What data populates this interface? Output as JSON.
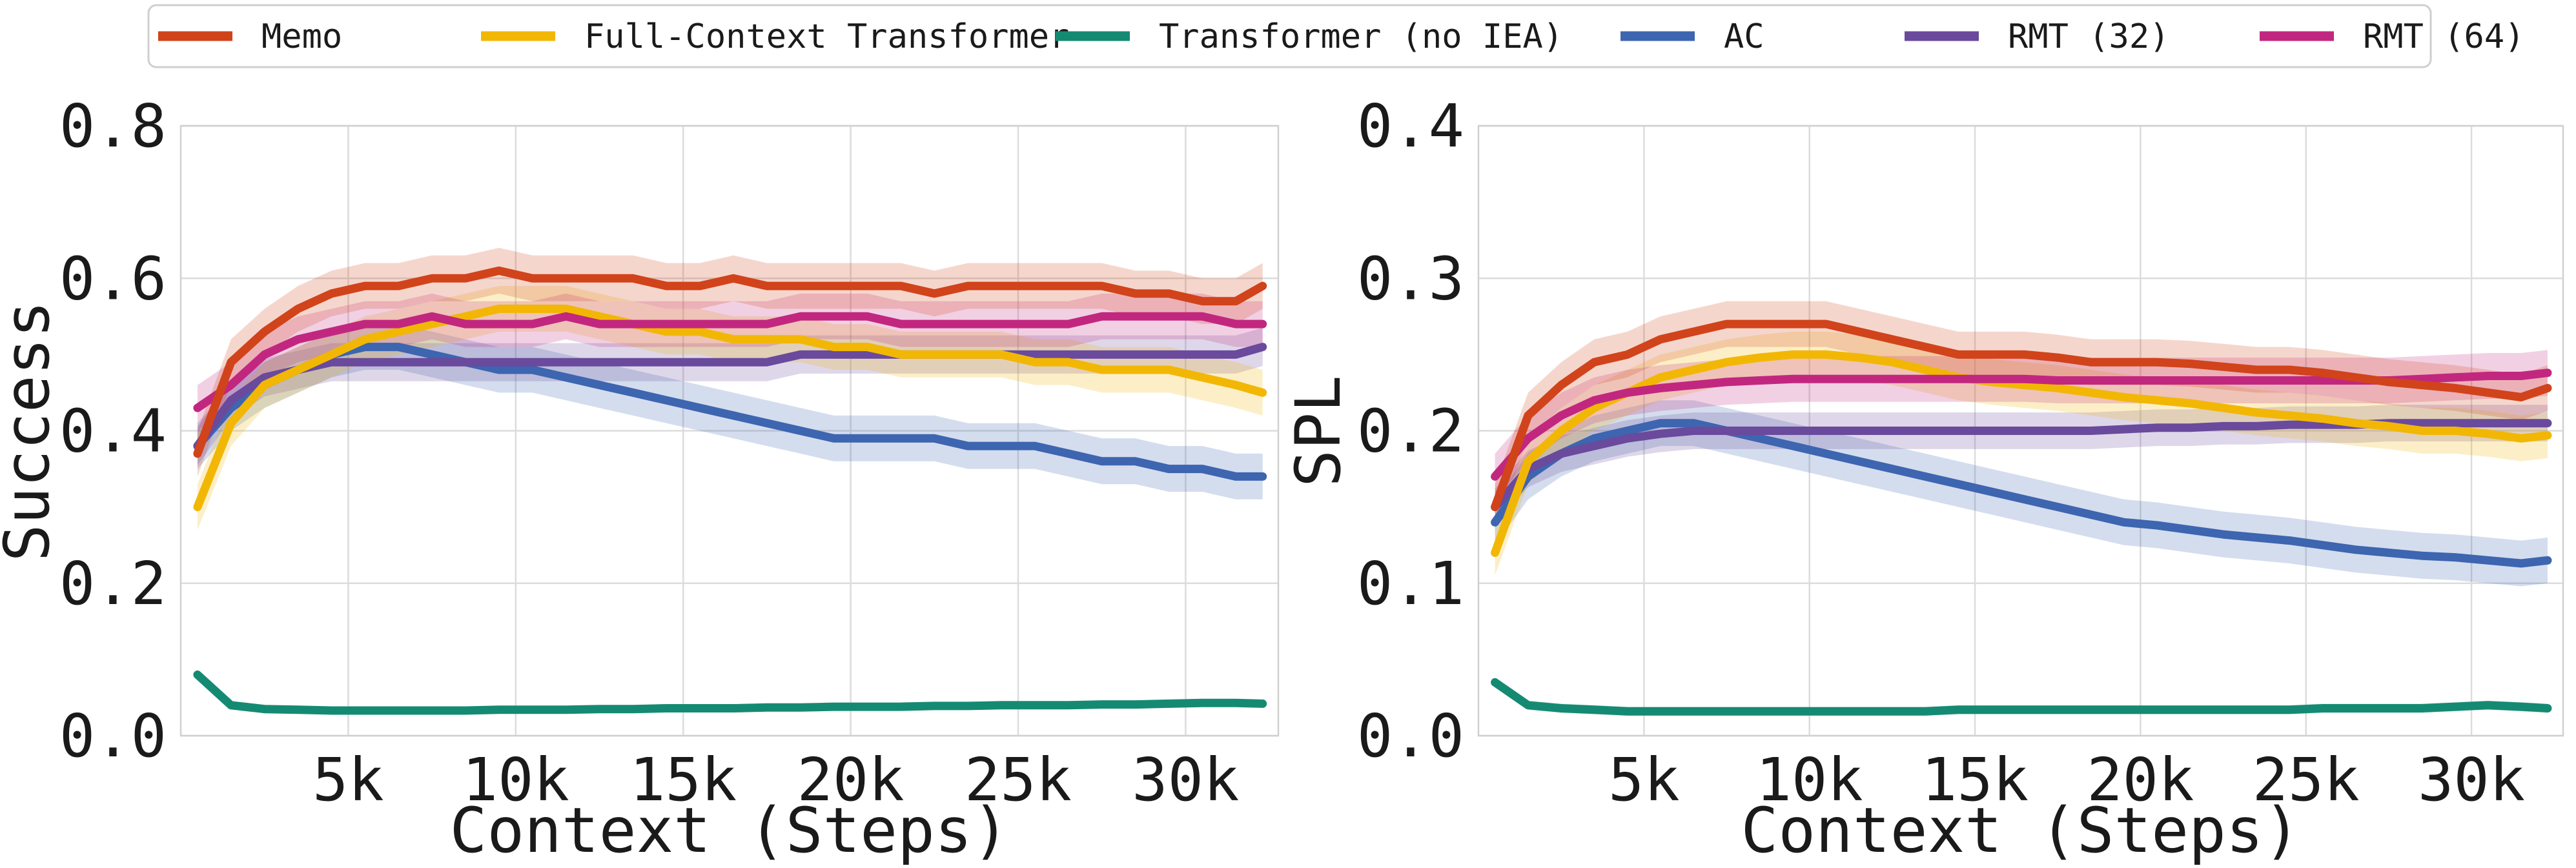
{
  "legend": [
    {
      "label": "Memo",
      "color": "#d1431b"
    },
    {
      "label": "Full-Context Transformer",
      "color": "#f2b705"
    },
    {
      "label": "Transformer (no IEA)",
      "color": "#158a72"
    },
    {
      "label": "AC",
      "color": "#3d65b0"
    },
    {
      "label": "RMT (32)",
      "color": "#6a4a9c"
    },
    {
      "label": "RMT (64)",
      "color": "#c2277f"
    }
  ],
  "chart_data": [
    {
      "type": "line",
      "title": "",
      "xlabel": "Context (Steps)",
      "ylabel": "Success",
      "xlim": [
        0,
        32768
      ],
      "ylim": [
        0,
        0.8
      ],
      "xticks": [
        5000,
        10000,
        15000,
        20000,
        25000,
        30000
      ],
      "xtick_labels": [
        "5k",
        "10k",
        "15k",
        "20k",
        "25k",
        "30k"
      ],
      "yticks": [
        0,
        0.2,
        0.4,
        0.6,
        0.8
      ],
      "ytick_labels": [
        "0.0",
        "0.2",
        "0.4",
        "0.6",
        "0.8"
      ],
      "grid": true,
      "x": [
        500,
        1500,
        2500,
        3500,
        4500,
        5500,
        6500,
        7500,
        8500,
        9500,
        10500,
        11500,
        12500,
        13500,
        14500,
        15500,
        16500,
        17500,
        18500,
        19500,
        20500,
        21500,
        22500,
        23500,
        24500,
        25500,
        26500,
        27500,
        28500,
        29500,
        30500,
        31500,
        32300
      ],
      "series": [
        {
          "name": "Memo",
          "values": [
            0.37,
            0.49,
            0.53,
            0.56,
            0.58,
            0.59,
            0.59,
            0.6,
            0.6,
            0.61,
            0.6,
            0.6,
            0.6,
            0.6,
            0.59,
            0.59,
            0.6,
            0.59,
            0.59,
            0.59,
            0.59,
            0.59,
            0.58,
            0.59,
            0.59,
            0.59,
            0.59,
            0.59,
            0.58,
            0.58,
            0.57,
            0.57,
            0.59
          ],
          "band": [
            0.03,
            0.03,
            0.03,
            0.03,
            0.03,
            0.03,
            0.03,
            0.03,
            0.03,
            0.03,
            0.03,
            0.03,
            0.03,
            0.03,
            0.03,
            0.03,
            0.03,
            0.03,
            0.03,
            0.03,
            0.03,
            0.03,
            0.03,
            0.03,
            0.03,
            0.03,
            0.03,
            0.03,
            0.03,
            0.03,
            0.03,
            0.03,
            0.03
          ]
        },
        {
          "name": "Full-Context Transformer",
          "values": [
            0.3,
            0.41,
            0.46,
            0.48,
            0.5,
            0.52,
            0.53,
            0.54,
            0.55,
            0.56,
            0.56,
            0.56,
            0.55,
            0.54,
            0.53,
            0.53,
            0.52,
            0.52,
            0.52,
            0.51,
            0.51,
            0.5,
            0.5,
            0.5,
            0.5,
            0.49,
            0.49,
            0.48,
            0.48,
            0.48,
            0.47,
            0.46,
            0.45
          ],
          "band": [
            0.03,
            0.03,
            0.03,
            0.03,
            0.03,
            0.03,
            0.03,
            0.03,
            0.03,
            0.03,
            0.03,
            0.03,
            0.03,
            0.03,
            0.03,
            0.03,
            0.03,
            0.03,
            0.03,
            0.03,
            0.03,
            0.03,
            0.03,
            0.03,
            0.03,
            0.03,
            0.03,
            0.03,
            0.03,
            0.03,
            0.03,
            0.03,
            0.03
          ]
        },
        {
          "name": "Transformer (no IEA)",
          "values": [
            0.08,
            0.04,
            0.035,
            0.034,
            0.033,
            0.033,
            0.033,
            0.033,
            0.033,
            0.034,
            0.034,
            0.034,
            0.035,
            0.035,
            0.036,
            0.036,
            0.036,
            0.037,
            0.037,
            0.038,
            0.038,
            0.038,
            0.039,
            0.039,
            0.04,
            0.04,
            0.04,
            0.041,
            0.041,
            0.042,
            0.043,
            0.043,
            0.042
          ],
          "band": [
            0.005,
            0.005,
            0.005,
            0.005,
            0.005,
            0.005,
            0.005,
            0.005,
            0.005,
            0.005,
            0.005,
            0.005,
            0.005,
            0.005,
            0.005,
            0.005,
            0.005,
            0.005,
            0.005,
            0.005,
            0.005,
            0.005,
            0.005,
            0.005,
            0.005,
            0.005,
            0.005,
            0.005,
            0.005,
            0.005,
            0.005,
            0.005,
            0.005
          ]
        },
        {
          "name": "AC",
          "values": [
            0.38,
            0.43,
            0.46,
            0.48,
            0.5,
            0.51,
            0.51,
            0.5,
            0.49,
            0.48,
            0.48,
            0.47,
            0.46,
            0.45,
            0.44,
            0.43,
            0.42,
            0.41,
            0.4,
            0.39,
            0.39,
            0.39,
            0.39,
            0.38,
            0.38,
            0.38,
            0.37,
            0.36,
            0.36,
            0.35,
            0.35,
            0.34,
            0.34
          ],
          "band": [
            0.03,
            0.03,
            0.03,
            0.03,
            0.03,
            0.03,
            0.03,
            0.03,
            0.03,
            0.03,
            0.03,
            0.03,
            0.03,
            0.03,
            0.03,
            0.03,
            0.03,
            0.03,
            0.03,
            0.03,
            0.03,
            0.03,
            0.03,
            0.03,
            0.03,
            0.03,
            0.03,
            0.03,
            0.03,
            0.03,
            0.03,
            0.03,
            0.03
          ]
        },
        {
          "name": "RMT (32)",
          "values": [
            0.38,
            0.44,
            0.47,
            0.48,
            0.49,
            0.49,
            0.49,
            0.49,
            0.49,
            0.49,
            0.49,
            0.49,
            0.49,
            0.49,
            0.49,
            0.49,
            0.49,
            0.49,
            0.5,
            0.5,
            0.5,
            0.5,
            0.5,
            0.5,
            0.5,
            0.5,
            0.5,
            0.5,
            0.5,
            0.5,
            0.5,
            0.5,
            0.51
          ],
          "band": [
            0.025,
            0.025,
            0.025,
            0.025,
            0.025,
            0.025,
            0.025,
            0.025,
            0.025,
            0.025,
            0.025,
            0.025,
            0.025,
            0.025,
            0.025,
            0.025,
            0.025,
            0.025,
            0.025,
            0.025,
            0.025,
            0.025,
            0.025,
            0.025,
            0.025,
            0.025,
            0.025,
            0.025,
            0.025,
            0.025,
            0.025,
            0.025,
            0.025
          ]
        },
        {
          "name": "RMT (64)",
          "values": [
            0.43,
            0.46,
            0.5,
            0.52,
            0.53,
            0.54,
            0.54,
            0.55,
            0.54,
            0.54,
            0.54,
            0.55,
            0.54,
            0.54,
            0.54,
            0.54,
            0.54,
            0.54,
            0.55,
            0.55,
            0.55,
            0.54,
            0.54,
            0.54,
            0.54,
            0.54,
            0.54,
            0.55,
            0.55,
            0.55,
            0.55,
            0.54,
            0.54
          ],
          "band": [
            0.03,
            0.03,
            0.03,
            0.03,
            0.03,
            0.03,
            0.03,
            0.03,
            0.03,
            0.03,
            0.03,
            0.03,
            0.03,
            0.03,
            0.03,
            0.03,
            0.03,
            0.03,
            0.03,
            0.03,
            0.03,
            0.03,
            0.03,
            0.03,
            0.03,
            0.03,
            0.03,
            0.03,
            0.03,
            0.03,
            0.03,
            0.03,
            0.03
          ]
        }
      ]
    },
    {
      "type": "line",
      "title": "",
      "xlabel": "Context (Steps)",
      "ylabel": "SPL",
      "xlim": [
        0,
        32768
      ],
      "ylim": [
        0,
        0.4
      ],
      "xticks": [
        5000,
        10000,
        15000,
        20000,
        25000,
        30000
      ],
      "xtick_labels": [
        "5k",
        "10k",
        "15k",
        "20k",
        "25k",
        "30k"
      ],
      "yticks": [
        0,
        0.1,
        0.2,
        0.3,
        0.4
      ],
      "ytick_labels": [
        "0.0",
        "0.1",
        "0.2",
        "0.3",
        "0.4"
      ],
      "grid": true,
      "x": [
        500,
        1500,
        2500,
        3500,
        4500,
        5500,
        6500,
        7500,
        8500,
        9500,
        10500,
        11500,
        12500,
        13500,
        14500,
        15500,
        16500,
        17500,
        18500,
        19500,
        20500,
        21500,
        22500,
        23500,
        24500,
        25500,
        26500,
        27500,
        28500,
        29500,
        30500,
        31500,
        32300
      ],
      "series": [
        {
          "name": "Memo",
          "values": [
            0.15,
            0.21,
            0.23,
            0.245,
            0.25,
            0.26,
            0.265,
            0.27,
            0.27,
            0.27,
            0.27,
            0.265,
            0.26,
            0.255,
            0.25,
            0.25,
            0.25,
            0.248,
            0.245,
            0.245,
            0.245,
            0.244,
            0.242,
            0.24,
            0.24,
            0.238,
            0.235,
            0.232,
            0.23,
            0.228,
            0.225,
            0.222,
            0.228
          ],
          "band": [
            0.015,
            0.015,
            0.015,
            0.015,
            0.015,
            0.015,
            0.015,
            0.015,
            0.015,
            0.015,
            0.015,
            0.015,
            0.015,
            0.015,
            0.015,
            0.015,
            0.015,
            0.015,
            0.015,
            0.015,
            0.015,
            0.015,
            0.015,
            0.015,
            0.015,
            0.015,
            0.015,
            0.015,
            0.015,
            0.015,
            0.015,
            0.015,
            0.015
          ]
        },
        {
          "name": "Full-Context Transformer",
          "values": [
            0.12,
            0.18,
            0.2,
            0.215,
            0.225,
            0.235,
            0.24,
            0.245,
            0.248,
            0.25,
            0.25,
            0.248,
            0.245,
            0.24,
            0.235,
            0.232,
            0.23,
            0.228,
            0.225,
            0.222,
            0.22,
            0.218,
            0.215,
            0.212,
            0.21,
            0.208,
            0.205,
            0.203,
            0.2,
            0.2,
            0.198,
            0.195,
            0.197
          ],
          "band": [
            0.015,
            0.015,
            0.015,
            0.015,
            0.015,
            0.015,
            0.015,
            0.015,
            0.015,
            0.015,
            0.015,
            0.015,
            0.015,
            0.015,
            0.015,
            0.015,
            0.015,
            0.015,
            0.015,
            0.015,
            0.015,
            0.015,
            0.015,
            0.015,
            0.015,
            0.015,
            0.015,
            0.015,
            0.015,
            0.015,
            0.015,
            0.015,
            0.015
          ]
        },
        {
          "name": "Transformer (no IEA)",
          "values": [
            0.035,
            0.02,
            0.018,
            0.017,
            0.016,
            0.016,
            0.016,
            0.016,
            0.016,
            0.016,
            0.016,
            0.016,
            0.016,
            0.016,
            0.017,
            0.017,
            0.017,
            0.017,
            0.017,
            0.017,
            0.017,
            0.017,
            0.017,
            0.017,
            0.017,
            0.018,
            0.018,
            0.018,
            0.018,
            0.019,
            0.02,
            0.019,
            0.018
          ],
          "band": [
            0.003,
            0.003,
            0.003,
            0.003,
            0.003,
            0.003,
            0.003,
            0.003,
            0.003,
            0.003,
            0.003,
            0.003,
            0.003,
            0.003,
            0.003,
            0.003,
            0.003,
            0.003,
            0.003,
            0.003,
            0.003,
            0.003,
            0.003,
            0.003,
            0.003,
            0.003,
            0.003,
            0.003,
            0.003,
            0.003,
            0.003,
            0.003,
            0.003
          ]
        },
        {
          "name": "AC",
          "values": [
            0.14,
            0.17,
            0.185,
            0.195,
            0.2,
            0.205,
            0.205,
            0.2,
            0.195,
            0.19,
            0.185,
            0.18,
            0.175,
            0.17,
            0.165,
            0.16,
            0.155,
            0.15,
            0.145,
            0.14,
            0.138,
            0.135,
            0.132,
            0.13,
            0.128,
            0.125,
            0.122,
            0.12,
            0.118,
            0.117,
            0.115,
            0.113,
            0.115
          ],
          "band": [
            0.015,
            0.015,
            0.015,
            0.015,
            0.015,
            0.015,
            0.015,
            0.015,
            0.015,
            0.015,
            0.015,
            0.015,
            0.015,
            0.015,
            0.015,
            0.015,
            0.015,
            0.015,
            0.015,
            0.015,
            0.015,
            0.015,
            0.015,
            0.015,
            0.015,
            0.015,
            0.015,
            0.015,
            0.015,
            0.015,
            0.015,
            0.015,
            0.015
          ]
        },
        {
          "name": "RMT (32)",
          "values": [
            0.15,
            0.175,
            0.185,
            0.19,
            0.195,
            0.198,
            0.2,
            0.2,
            0.2,
            0.2,
            0.2,
            0.2,
            0.2,
            0.2,
            0.2,
            0.2,
            0.2,
            0.2,
            0.2,
            0.201,
            0.202,
            0.202,
            0.203,
            0.203,
            0.204,
            0.204,
            0.204,
            0.205,
            0.205,
            0.205,
            0.205,
            0.205,
            0.205
          ],
          "band": [
            0.012,
            0.012,
            0.012,
            0.012,
            0.012,
            0.012,
            0.012,
            0.012,
            0.012,
            0.012,
            0.012,
            0.012,
            0.012,
            0.012,
            0.012,
            0.012,
            0.012,
            0.012,
            0.012,
            0.012,
            0.012,
            0.012,
            0.012,
            0.012,
            0.012,
            0.012,
            0.012,
            0.012,
            0.012,
            0.012,
            0.012,
            0.012,
            0.012
          ]
        },
        {
          "name": "RMT (64)",
          "values": [
            0.17,
            0.195,
            0.21,
            0.22,
            0.225,
            0.228,
            0.23,
            0.232,
            0.233,
            0.234,
            0.234,
            0.234,
            0.234,
            0.234,
            0.234,
            0.234,
            0.234,
            0.233,
            0.233,
            0.233,
            0.233,
            0.233,
            0.233,
            0.233,
            0.233,
            0.233,
            0.233,
            0.233,
            0.234,
            0.235,
            0.236,
            0.236,
            0.238
          ],
          "band": [
            0.015,
            0.015,
            0.015,
            0.015,
            0.015,
            0.015,
            0.015,
            0.015,
            0.015,
            0.015,
            0.015,
            0.015,
            0.015,
            0.015,
            0.015,
            0.015,
            0.015,
            0.015,
            0.015,
            0.015,
            0.015,
            0.015,
            0.015,
            0.015,
            0.015,
            0.015,
            0.015,
            0.015,
            0.015,
            0.015,
            0.015,
            0.015,
            0.015
          ]
        }
      ]
    }
  ]
}
